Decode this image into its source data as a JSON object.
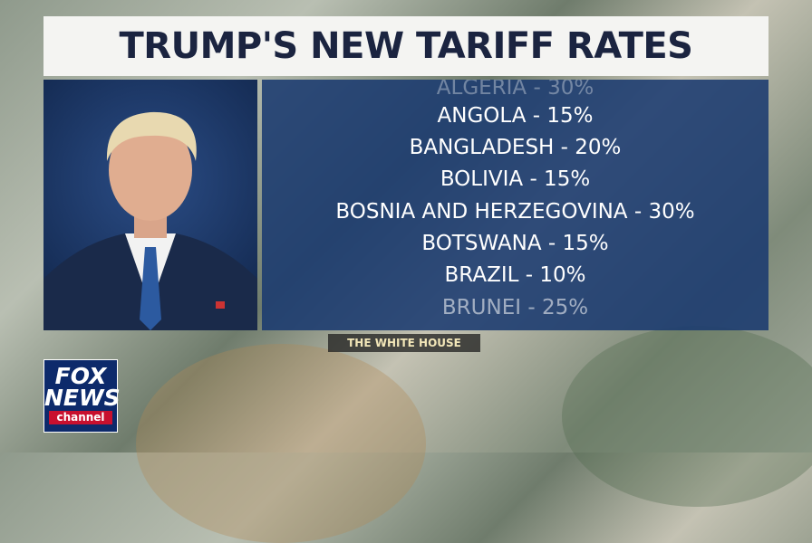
{
  "header": {
    "title": "TRUMP'S NEW TARIFF RATES"
  },
  "list": {
    "items": [
      "ALGERIA - 30%",
      "ANGOLA - 15%",
      "BANGLADESH - 20%",
      "BOLIVIA - 15%",
      "BOSNIA AND HERZEGOVINA - 30%",
      "BOTSWANA - 15%",
      "BRAZIL - 10%",
      "BRUNEI - 25%"
    ]
  },
  "credit": "THE WHITE HOUSE",
  "logo": {
    "line1": "FOX",
    "line2": "NEWS",
    "line3": "channel"
  }
}
